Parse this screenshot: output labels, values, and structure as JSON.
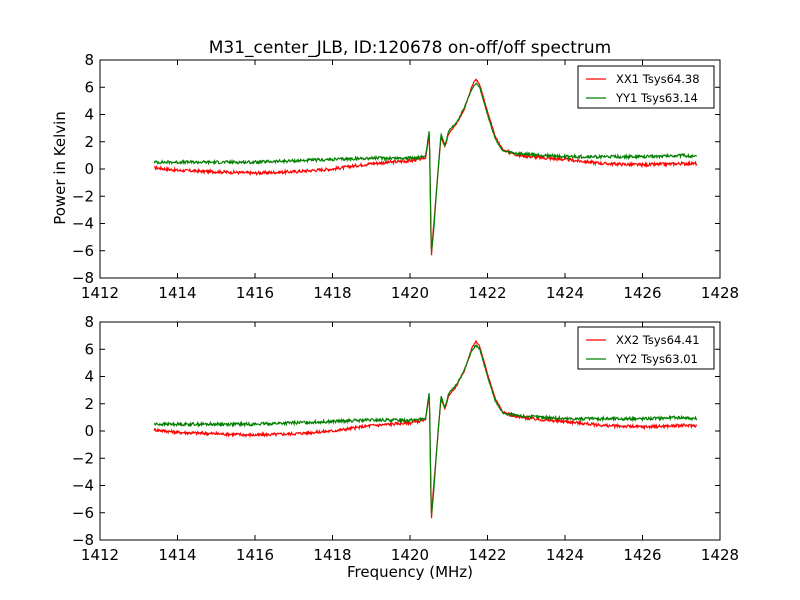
{
  "figure": {
    "title": "M31_center_JLB, ID:120678 on-off/off spectrum",
    "background": "#ffffff"
  },
  "chart_data": [
    {
      "type": "line",
      "title": "M31_center_JLB, ID:120678 on-off/off spectrum",
      "xlabel": "",
      "ylabel": "Power in Kelvin",
      "xlim": [
        1412,
        1428
      ],
      "ylim": [
        -8,
        8
      ],
      "xticks": [
        1412,
        1414,
        1416,
        1418,
        1420,
        1422,
        1424,
        1426,
        1428
      ],
      "yticks": [
        -8,
        -6,
        -4,
        -2,
        0,
        2,
        4,
        6,
        8
      ],
      "legend_position": "top-right",
      "series": [
        {
          "name": "XX1 Tsys64.38",
          "color": "#ff0000",
          "points": [
            [
              1413.4,
              0.1
            ],
            [
              1414,
              -0.1
            ],
            [
              1415,
              -0.2
            ],
            [
              1416,
              -0.3
            ],
            [
              1417,
              -0.2
            ],
            [
              1418,
              0.0
            ],
            [
              1419,
              0.4
            ],
            [
              1420,
              0.6
            ],
            [
              1420.4,
              0.8
            ],
            [
              1420.5,
              2.6
            ],
            [
              1420.55,
              -6.6
            ],
            [
              1420.6,
              -4.5
            ],
            [
              1420.7,
              -1.0
            ],
            [
              1420.8,
              2.4
            ],
            [
              1420.9,
              1.6
            ],
            [
              1421.0,
              2.6
            ],
            [
              1421.2,
              3.3
            ],
            [
              1421.4,
              4.4
            ],
            [
              1421.6,
              6.1
            ],
            [
              1421.7,
              6.6
            ],
            [
              1421.8,
              6.2
            ],
            [
              1422.0,
              4.2
            ],
            [
              1422.2,
              2.4
            ],
            [
              1422.4,
              1.4
            ],
            [
              1422.8,
              1.0
            ],
            [
              1423.5,
              0.8
            ],
            [
              1424,
              0.7
            ],
            [
              1425,
              0.4
            ],
            [
              1426,
              0.3
            ],
            [
              1427,
              0.4
            ],
            [
              1427.4,
              0.4
            ]
          ]
        },
        {
          "name": "YY1 Tsys63.14",
          "color": "#007f00",
          "points": [
            [
              1413.4,
              0.5
            ],
            [
              1414,
              0.5
            ],
            [
              1415,
              0.5
            ],
            [
              1416,
              0.5
            ],
            [
              1417,
              0.6
            ],
            [
              1418,
              0.7
            ],
            [
              1419,
              0.8
            ],
            [
              1420,
              0.8
            ],
            [
              1420.4,
              0.9
            ],
            [
              1420.5,
              2.9
            ],
            [
              1420.55,
              -6.2
            ],
            [
              1420.6,
              -4.9
            ],
            [
              1420.7,
              -1.0
            ],
            [
              1420.8,
              2.6
            ],
            [
              1420.9,
              1.7
            ],
            [
              1421.0,
              2.8
            ],
            [
              1421.2,
              3.4
            ],
            [
              1421.4,
              4.5
            ],
            [
              1421.6,
              5.9
            ],
            [
              1421.7,
              6.3
            ],
            [
              1421.8,
              6.0
            ],
            [
              1422.0,
              4.0
            ],
            [
              1422.2,
              2.2
            ],
            [
              1422.4,
              1.3
            ],
            [
              1422.8,
              1.1
            ],
            [
              1423.5,
              1.0
            ],
            [
              1424,
              0.9
            ],
            [
              1425,
              0.9
            ],
            [
              1426,
              0.9
            ],
            [
              1427,
              1.0
            ],
            [
              1427.4,
              0.9
            ]
          ]
        }
      ]
    },
    {
      "type": "line",
      "title": "",
      "xlabel": "Frequency (MHz)",
      "ylabel": "",
      "xlim": [
        1412,
        1428
      ],
      "ylim": [
        -8,
        8
      ],
      "xticks": [
        1412,
        1414,
        1416,
        1418,
        1420,
        1422,
        1424,
        1426,
        1428
      ],
      "yticks": [
        -8,
        -6,
        -4,
        -2,
        0,
        2,
        4,
        6,
        8
      ],
      "legend_position": "top-right",
      "series": [
        {
          "name": "XX2 Tsys64.41",
          "color": "#ff0000",
          "points": [
            [
              1413.4,
              0.1
            ],
            [
              1414,
              -0.1
            ],
            [
              1415,
              -0.2
            ],
            [
              1416,
              -0.3
            ],
            [
              1417,
              -0.2
            ],
            [
              1418,
              0.0
            ],
            [
              1419,
              0.4
            ],
            [
              1420,
              0.6
            ],
            [
              1420.4,
              0.8
            ],
            [
              1420.5,
              2.7
            ],
            [
              1420.55,
              -6.6
            ],
            [
              1420.6,
              -4.4
            ],
            [
              1420.7,
              -1.0
            ],
            [
              1420.8,
              2.4
            ],
            [
              1420.9,
              1.6
            ],
            [
              1421.0,
              2.6
            ],
            [
              1421.2,
              3.3
            ],
            [
              1421.4,
              4.4
            ],
            [
              1421.6,
              6.1
            ],
            [
              1421.7,
              6.6
            ],
            [
              1421.8,
              6.2
            ],
            [
              1422.0,
              4.2
            ],
            [
              1422.2,
              2.4
            ],
            [
              1422.4,
              1.4
            ],
            [
              1422.8,
              1.0
            ],
            [
              1423.5,
              0.8
            ],
            [
              1424,
              0.7
            ],
            [
              1425,
              0.4
            ],
            [
              1426,
              0.3
            ],
            [
              1427,
              0.4
            ],
            [
              1427.4,
              0.4
            ]
          ]
        },
        {
          "name": "YY2 Tsys63.01",
          "color": "#007f00",
          "points": [
            [
              1413.4,
              0.5
            ],
            [
              1414,
              0.5
            ],
            [
              1415,
              0.5
            ],
            [
              1416,
              0.5
            ],
            [
              1417,
              0.6
            ],
            [
              1418,
              0.7
            ],
            [
              1419,
              0.8
            ],
            [
              1420,
              0.8
            ],
            [
              1420.4,
              0.9
            ],
            [
              1420.5,
              2.9
            ],
            [
              1420.55,
              -6.2
            ],
            [
              1420.6,
              -4.9
            ],
            [
              1420.7,
              -1.0
            ],
            [
              1420.8,
              2.6
            ],
            [
              1420.9,
              1.7
            ],
            [
              1421.0,
              2.8
            ],
            [
              1421.2,
              3.4
            ],
            [
              1421.4,
              4.5
            ],
            [
              1421.6,
              5.9
            ],
            [
              1421.7,
              6.3
            ],
            [
              1421.8,
              6.0
            ],
            [
              1422.0,
              4.0
            ],
            [
              1422.2,
              2.2
            ],
            [
              1422.4,
              1.3
            ],
            [
              1422.8,
              1.1
            ],
            [
              1423.5,
              1.0
            ],
            [
              1424,
              0.9
            ],
            [
              1425,
              0.9
            ],
            [
              1426,
              0.9
            ],
            [
              1427,
              1.0
            ],
            [
              1427.4,
              0.9
            ]
          ]
        }
      ]
    }
  ]
}
